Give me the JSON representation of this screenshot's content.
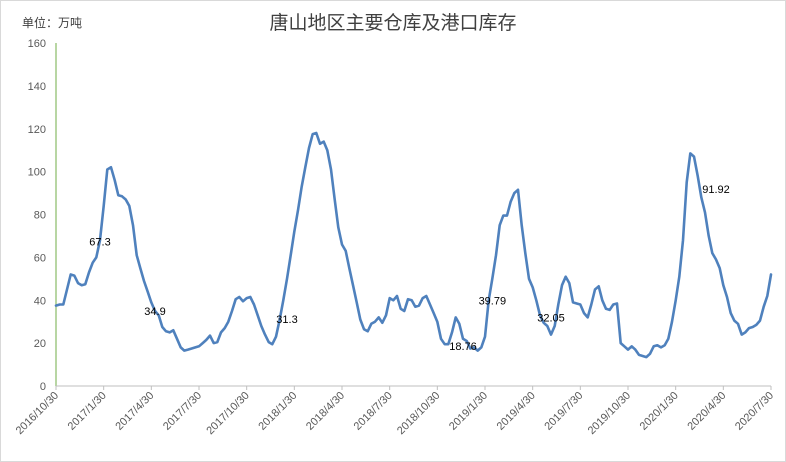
{
  "chart_data": {
    "type": "line",
    "title": "唐山地区主要仓库及港口库存",
    "unit_label": "单位：万吨",
    "ylim": [
      0,
      160
    ],
    "y_ticks": [
      "0",
      "20",
      "40",
      "60",
      "80",
      "100",
      "120",
      "140",
      "160"
    ],
    "x_tick_labels": [
      "2016/10/30",
      "2017/1/30",
      "2017/4/30",
      "2017/7/30",
      "2017/10/30",
      "2018/1/30",
      "2018/4/30",
      "2018/7/30",
      "2018/10/30",
      "2019/1/30",
      "2019/4/30",
      "2019/7/30",
      "2019/10/30",
      "2020/1/30",
      "2020/4/30",
      "2020/7/30"
    ],
    "grid": false,
    "legend": "none",
    "line_color": "#4f81bd",
    "series": [
      {
        "values": [
          37.5,
          38,
          38,
          45,
          52,
          51.5,
          48,
          47,
          47.5,
          53,
          57.5,
          60,
          68,
          84,
          101,
          102,
          96,
          89,
          88.5,
          87,
          84,
          75,
          61,
          55,
          49,
          44,
          39,
          35,
          33,
          27.5,
          25.5,
          25,
          26,
          22,
          18,
          16.5,
          17,
          17.5,
          18,
          18.5,
          20,
          21.5,
          23.5,
          20,
          20.5,
          25,
          27,
          30,
          35,
          40.5,
          41.5,
          39.5,
          41,
          41.5,
          38,
          33,
          28,
          24,
          20.5,
          19.5,
          23,
          31,
          40,
          50,
          61,
          72,
          82,
          93,
          102,
          111,
          117.5,
          118,
          113,
          114,
          110,
          101,
          87,
          74,
          66,
          63,
          55,
          47,
          39,
          31,
          26.5,
          25.5,
          29,
          30,
          32,
          29.5,
          33,
          41,
          40,
          42,
          36,
          35,
          40.5,
          40,
          37,
          37.5,
          41,
          42,
          38,
          34,
          30,
          22,
          19.5,
          19.5,
          25,
          32,
          29,
          22,
          21,
          17.5,
          18,
          16.5,
          18,
          23,
          40,
          50,
          61,
          75,
          79.5,
          79.5,
          86,
          90,
          91.5,
          75,
          62,
          50,
          46,
          40,
          33,
          29.5,
          28,
          24,
          28,
          38,
          47,
          51,
          48,
          39,
          38.5,
          38,
          34,
          32,
          38,
          45,
          46.5,
          40,
          36,
          35.5,
          38,
          38.5,
          20,
          18.5,
          17,
          18.5,
          17,
          14.5,
          14,
          13.5,
          15,
          18.5,
          19,
          18,
          19,
          22,
          30,
          40,
          51,
          68,
          95,
          108.5,
          107,
          98,
          88,
          81,
          70,
          62,
          59,
          55,
          47,
          41.5,
          34,
          30.5,
          29,
          24,
          25,
          27,
          27.5,
          28.5,
          30.5,
          37,
          42,
          52
        ]
      }
    ],
    "annotations": [
      {
        "text": "67.3",
        "index": 12
      },
      {
        "text": "34.9",
        "index": 27
      },
      {
        "text": "31.3",
        "index": 63
      },
      {
        "text": "18.76",
        "index": 111
      },
      {
        "text": "39.79",
        "index": 119
      },
      {
        "text": "32.05",
        "index": 135
      },
      {
        "text": "91.92",
        "index": 180
      }
    ]
  }
}
